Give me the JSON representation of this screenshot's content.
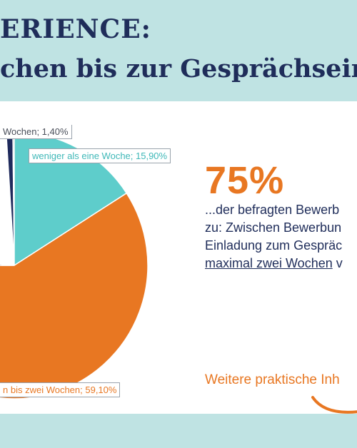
{
  "header": {
    "title_line_1": "ERIENCE:",
    "title_line_2": "chen bis zur Gesprächseinla"
  },
  "chart_data": {
    "type": "pie",
    "slices": [
      {
        "label": "weniger als eine Woche",
        "value": 15.9,
        "color": "#5ecdcb"
      },
      {
        "label": "bis zwei Wochen",
        "value": 59.1,
        "color": "#e87722"
      },
      {
        "label": "Wochen",
        "value": 1.4,
        "color": "#4a4f5a"
      }
    ],
    "slice_labels": {
      "top": "Wochen; 1,40%",
      "teal": "weniger als eine Woche; 15,90%",
      "orange": "n bis zwei Wochen; 59,10%"
    },
    "partial_colors": [
      "#1f2a5c",
      "#5a5f68"
    ]
  },
  "highlight": {
    "number": "75%",
    "line1": "...der befragten Bewerb",
    "line2": "zu: Zwischen Bewerbun",
    "line3": "Einladung zum Gespräc",
    "line4_underlined": "maximal zwei Wochen",
    "line4_rest": " v"
  },
  "footer": {
    "more_link": "Weitere praktische Inh"
  }
}
